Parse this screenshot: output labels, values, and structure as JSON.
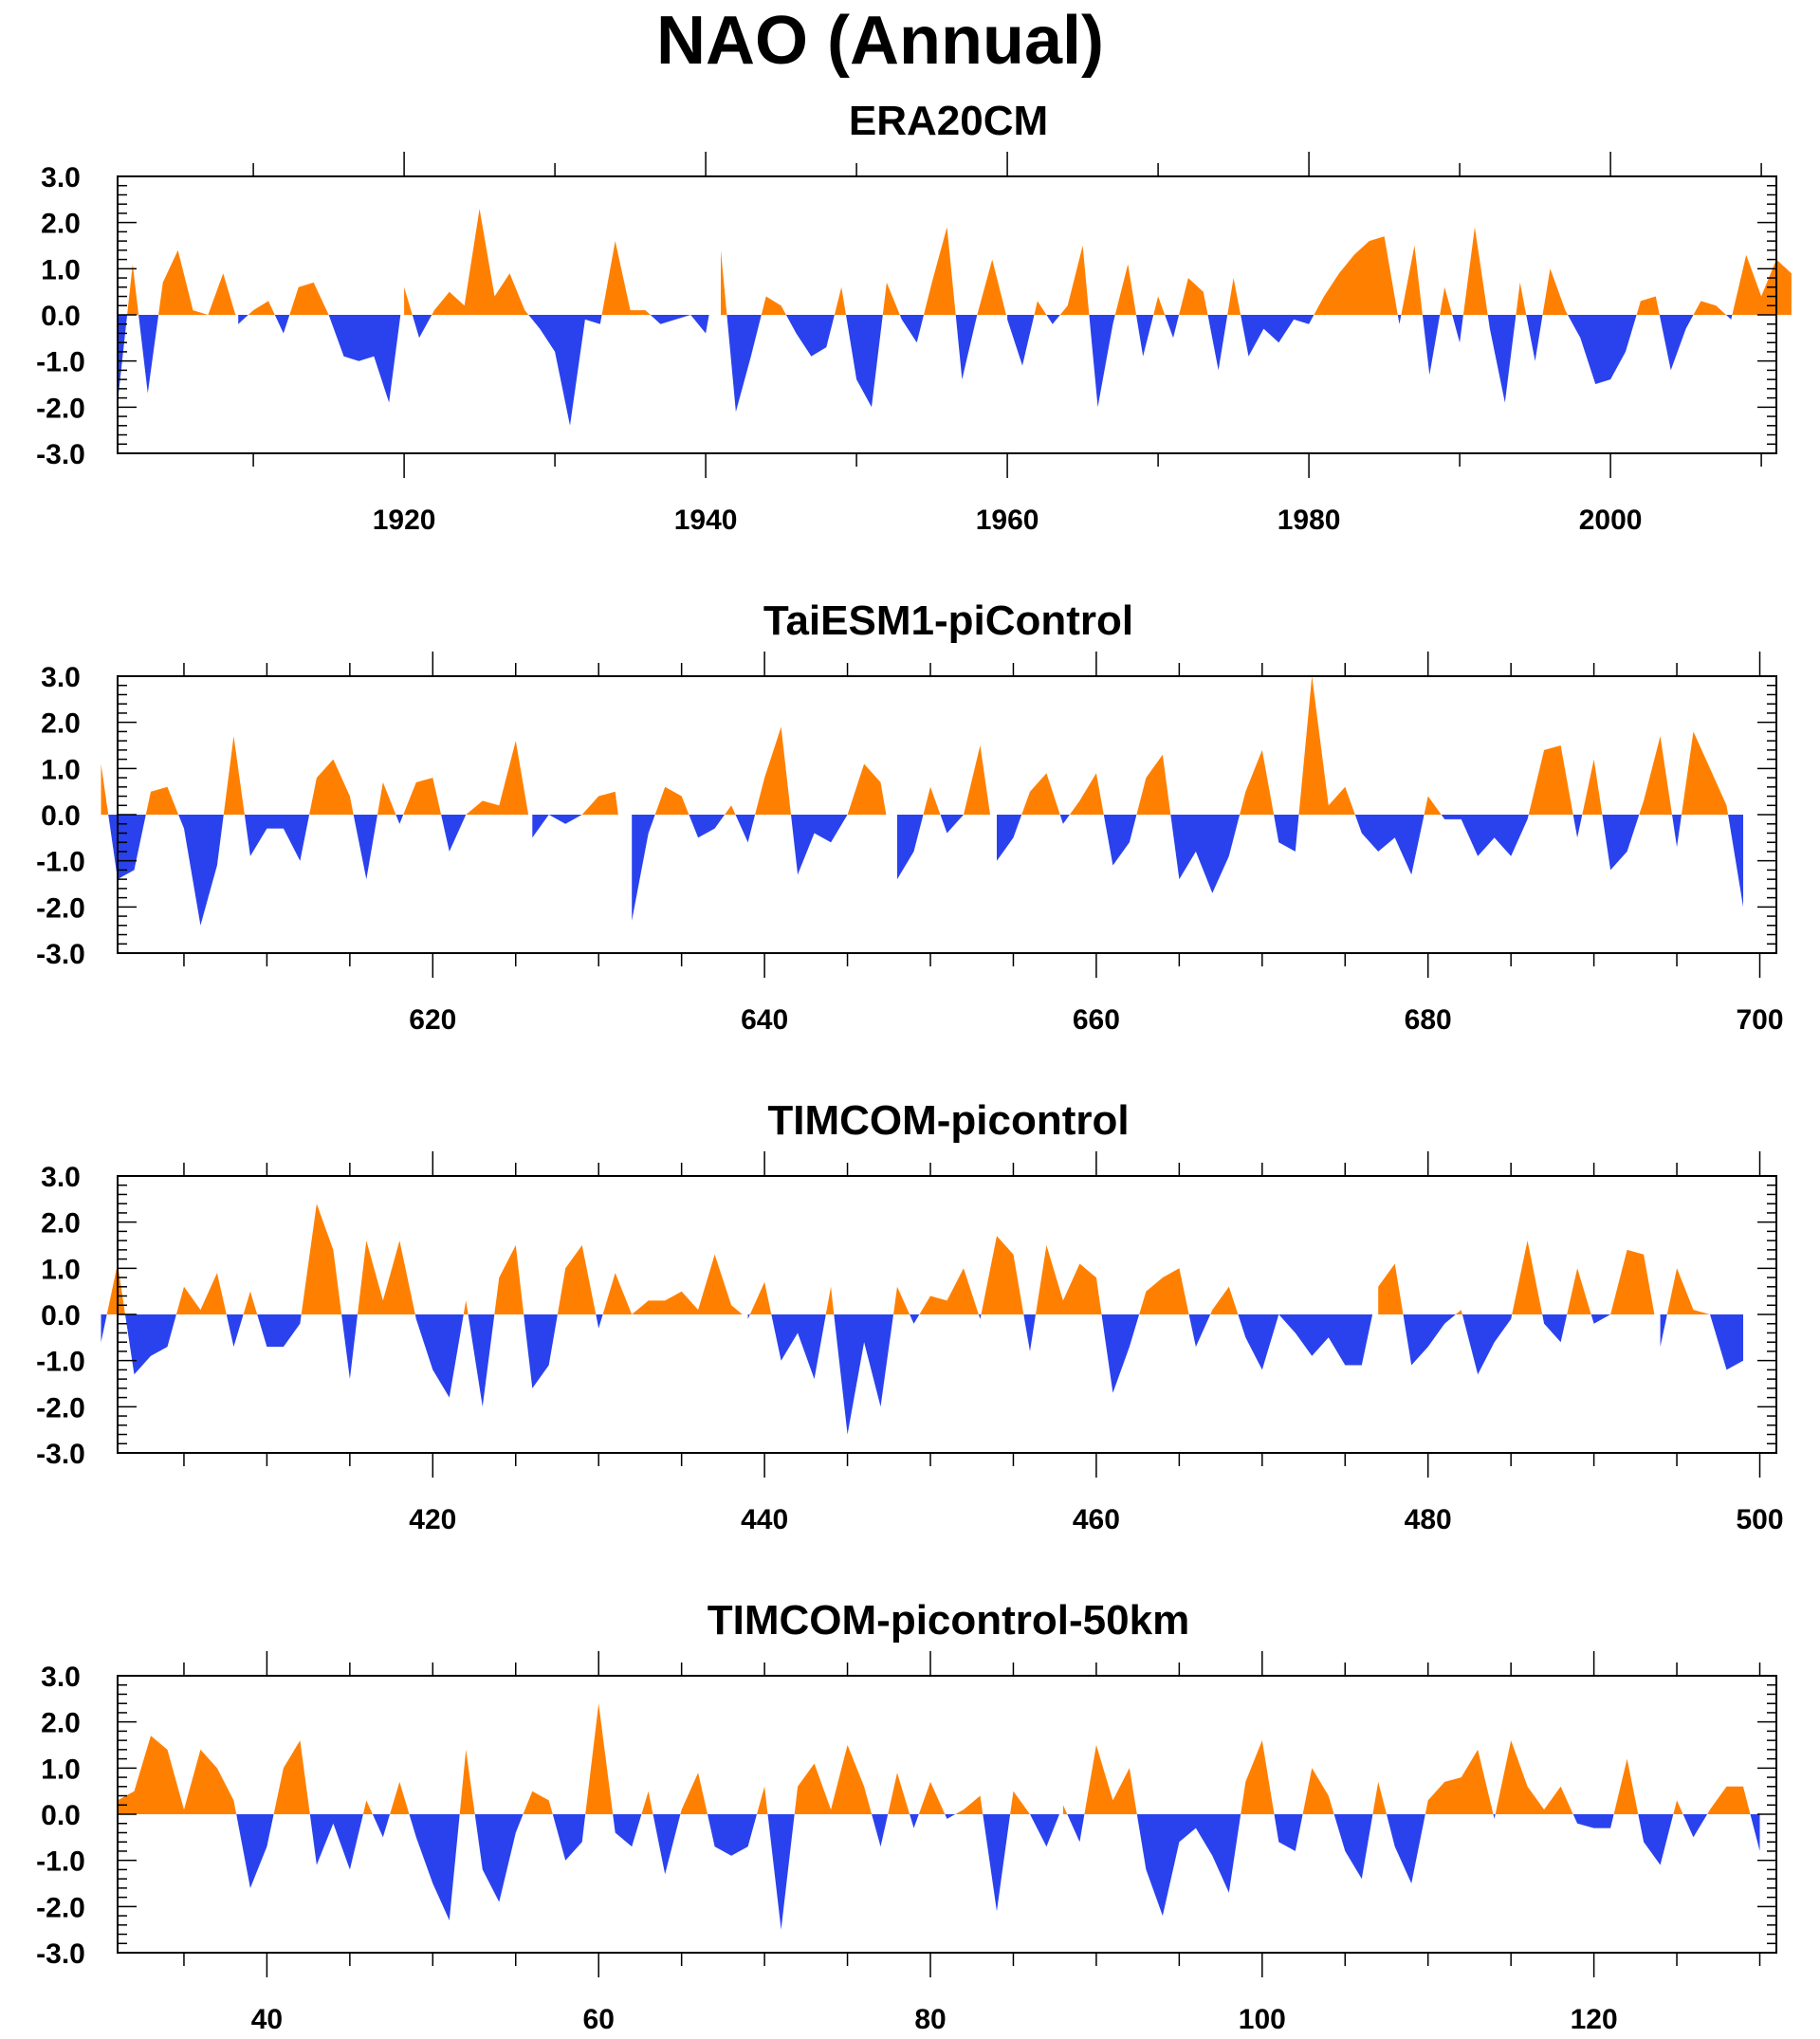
{
  "title": "NAO (Annual)",
  "colors": {
    "positive": "#ff8000",
    "negative": "#2a42ee",
    "frame": "#000000"
  },
  "chart_data": [
    {
      "type": "area",
      "title": "ERA20CM",
      "xlim": [
        1901,
        2011
      ],
      "ylim": [
        -3.0,
        3.0
      ],
      "yticks": [
        "3.0",
        "2.0",
        "1.0",
        "0.0",
        "-1.0",
        "-2.0",
        "-3.0"
      ],
      "xticks": [
        1920,
        1940,
        1960,
        1980,
        2000
      ],
      "x_start": 1901,
      "values": [
        -1.9,
        1.1,
        -1.7,
        0.7,
        1.4,
        0.1,
        0.0,
        0.9,
        -0.2,
        0.1,
        0.3,
        -0.4,
        0.6,
        0.7,
        0.0,
        -0.9,
        -1.0,
        -0.9,
        -1.9,
        0.6,
        -0.5,
        0.1,
        0.5,
        0.2,
        2.3,
        0.4,
        0.9,
        0.1,
        -0.3,
        -0.8,
        -2.4,
        -0.1,
        -0.2,
        1.6,
        0.1,
        0.1,
        -0.2,
        -0.1,
        0.0,
        -0.4,
        1.4,
        -2.1,
        -0.9,
        0.4,
        0.2,
        -0.4,
        -0.9,
        -0.7,
        0.6,
        -1.4,
        -2.0,
        0.7,
        -0.1,
        -0.6,
        0.7,
        1.9,
        -1.4,
        0.0,
        1.2,
        -0.1,
        -1.1,
        0.3,
        -0.2,
        0.2,
        1.5,
        -2.0,
        -0.2,
        1.1,
        -0.9,
        0.4,
        -0.5,
        0.8,
        0.5,
        -1.2,
        0.8,
        -0.9,
        -0.3,
        -0.6,
        -0.1,
        -0.2,
        0.4,
        0.9,
        1.3,
        1.6,
        1.7,
        -0.2,
        1.5,
        -1.3,
        0.6,
        -0.6,
        1.9,
        -0.3,
        -1.9,
        0.7,
        -1.0,
        1.0,
        0.1,
        -0.5,
        -1.5,
        -1.4,
        -0.8,
        0.3,
        0.4,
        -1.2,
        -0.3,
        0.3,
        0.2,
        -0.1,
        1.3,
        0.4,
        1.2,
        0.9
      ]
    },
    {
      "type": "area",
      "title": "TaiESM1-piControl",
      "xlim": [
        601,
        701
      ],
      "ylim": [
        -3.0,
        3.0
      ],
      "yticks": [
        "3.0",
        "2.0",
        "1.0",
        "0.0",
        "-1.0",
        "-2.0",
        "-3.0"
      ],
      "xticks": [
        620,
        640,
        660,
        680,
        700
      ],
      "x_start": 600,
      "values": [
        1.1,
        -1.4,
        -1.2,
        0.5,
        0.6,
        -0.3,
        -2.4,
        -1.1,
        1.7,
        -0.9,
        -0.3,
        -0.3,
        -1.0,
        0.8,
        1.2,
        0.4,
        -1.4,
        0.7,
        -0.2,
        0.7,
        0.8,
        -0.8,
        0.0,
        0.3,
        0.2,
        1.6,
        -0.5,
        0.0,
        -0.2,
        0.0,
        0.4,
        0.5,
        -2.3,
        -0.4,
        0.6,
        0.4,
        -0.5,
        -0.3,
        0.2,
        -0.6,
        0.8,
        1.9,
        -1.3,
        -0.4,
        -0.6,
        0.0,
        1.1,
        0.7,
        -1.4,
        -0.8,
        0.6,
        -0.4,
        0.0,
        1.5,
        -1.0,
        -0.5,
        0.5,
        0.9,
        -0.2,
        0.3,
        0.9,
        -1.1,
        -0.6,
        0.8,
        1.3,
        -1.4,
        -0.8,
        -1.7,
        -0.9,
        0.5,
        1.4,
        -0.6,
        -0.8,
        3.0,
        0.2,
        0.6,
        -0.4,
        -0.8,
        -0.5,
        -1.3,
        0.4,
        -0.1,
        -0.1,
        -0.9,
        -0.5,
        -0.9,
        -0.1,
        1.4,
        1.5,
        -0.5,
        1.2,
        -1.2,
        -0.8,
        0.3,
        1.7,
        -0.7,
        1.8,
        1.0,
        0.2,
        -2.0
      ]
    },
    {
      "type": "area",
      "title": "TIMCOM-picontrol",
      "xlim": [
        401,
        501
      ],
      "ylim": [
        -3.0,
        3.0
      ],
      "yticks": [
        "3.0",
        "2.0",
        "1.0",
        "0.0",
        "-1.0",
        "-2.0",
        "-3.0"
      ],
      "xticks": [
        420,
        440,
        460,
        480,
        500
      ],
      "x_start": 400,
      "values": [
        -0.6,
        1.1,
        -1.3,
        -0.9,
        -0.7,
        0.6,
        0.1,
        0.9,
        -0.7,
        0.5,
        -0.7,
        -0.7,
        -0.2,
        2.4,
        1.4,
        -1.4,
        1.6,
        0.3,
        1.6,
        -0.1,
        -1.2,
        -1.8,
        0.3,
        -2.0,
        0.8,
        1.5,
        -1.6,
        -1.1,
        1.0,
        1.5,
        -0.3,
        0.9,
        0.0,
        0.3,
        0.3,
        0.5,
        0.1,
        1.3,
        0.2,
        -0.1,
        0.7,
        -1.0,
        -0.4,
        -1.4,
        0.6,
        -2.6,
        -0.6,
        -2.0,
        0.6,
        -0.2,
        0.4,
        0.3,
        1.0,
        -0.1,
        1.7,
        1.3,
        -0.8,
        1.5,
        0.3,
        1.1,
        0.8,
        -1.7,
        -0.7,
        0.5,
        0.8,
        1.0,
        -0.7,
        0.1,
        0.6,
        -0.5,
        -1.2,
        0.0,
        -0.4,
        -0.9,
        -0.5,
        -1.1,
        -1.1,
        0.6,
        1.1,
        -1.1,
        -0.7,
        -0.2,
        0.1,
        -1.3,
        -0.6,
        -0.1,
        1.6,
        -0.2,
        -0.6,
        1.0,
        -0.2,
        0.0,
        1.4,
        1.3,
        -0.7,
        1.0,
        0.1,
        0.0,
        -1.2,
        -1.0
      ]
    },
    {
      "type": "area",
      "title": "TIMCOM-picontrol-50km",
      "xlim": [
        31,
        131
      ],
      "ylim": [
        -3.0,
        3.0
      ],
      "yticks": [
        "3.0",
        "2.0",
        "1.0",
        "0.0",
        "-1.0",
        "-2.0",
        "-3.0"
      ],
      "xticks": [
        40,
        60,
        80,
        100,
        120
      ],
      "x_start": 31,
      "values": [
        0.3,
        0.5,
        1.7,
        1.4,
        0.1,
        1.4,
        1.0,
        0.3,
        -1.6,
        -0.7,
        1.0,
        1.6,
        -1.1,
        -0.2,
        -1.2,
        0.3,
        -0.5,
        0.7,
        -0.5,
        -1.5,
        -2.3,
        1.4,
        -1.2,
        -1.9,
        -0.4,
        0.5,
        0.3,
        -1.0,
        -0.6,
        2.4,
        -0.4,
        -0.7,
        0.5,
        -1.3,
        0.1,
        0.9,
        -0.7,
        -0.9,
        -0.7,
        0.6,
        -2.5,
        0.6,
        1.1,
        0.1,
        1.5,
        0.6,
        -0.7,
        0.9,
        -0.3,
        0.7,
        -0.1,
        0.1,
        0.4,
        -2.1,
        0.5,
        0.0,
        -0.7,
        0.2,
        -0.6,
        1.5,
        0.3,
        1.0,
        -1.2,
        -2.2,
        -0.6,
        -0.3,
        -0.9,
        -1.7,
        0.7,
        1.6,
        -0.6,
        -0.8,
        1.0,
        0.4,
        -0.8,
        -1.4,
        0.7,
        -0.7,
        -1.5,
        0.3,
        0.7,
        0.8,
        1.4,
        -0.1,
        1.6,
        0.6,
        0.1,
        0.6,
        -0.2,
        -0.3,
        -0.3,
        1.2,
        -0.6,
        -1.1,
        0.3,
        -0.5,
        0.1,
        0.6,
        0.6,
        -0.8
      ]
    }
  ]
}
